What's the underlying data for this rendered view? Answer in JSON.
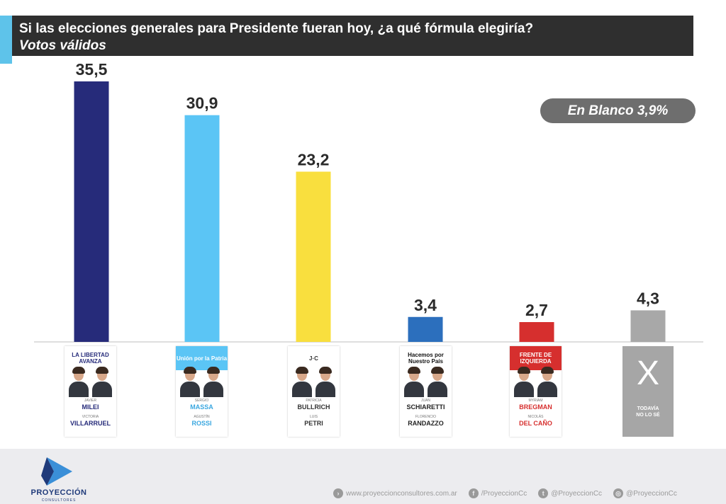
{
  "header": {
    "title": "Si las elecciones generales para Presidente fueran hoy, ¿a qué fórmula elegiría?",
    "subtitle": "Votos válidos"
  },
  "blank_badge": "En Blanco 3,9%",
  "chart_data": {
    "type": "bar",
    "title": "Si las elecciones generales para Presidente fueran hoy, ¿a qué fórmula elegiría?",
    "subtitle": "Votos válidos",
    "categories": [
      "Milei - Villarruel",
      "Massa - Rossi",
      "Bullrich - Petri",
      "Schiaretti - Randazzo",
      "Bregman - Del Caño",
      "Todavía no lo sé"
    ],
    "values": [
      35.5,
      30.9,
      23.2,
      3.4,
      2.7,
      4.3
    ],
    "value_labels": [
      "35,5",
      "30,9",
      "23,2",
      "3,4",
      "2,7",
      "4,3"
    ],
    "colors": [
      "#262b7a",
      "#5bc5f5",
      "#f9df3e",
      "#2c6fbd",
      "#d62f2e",
      "#a8a8a8"
    ],
    "ylim": [
      0,
      35.5
    ],
    "grid": false,
    "legend": "none",
    "annotation": "En Blanco 3,9%"
  },
  "candidates": [
    {
      "party": "LA LIBERTAD AVANZA",
      "first1": "JAVIER",
      "last1": "MILEI",
      "first2": "VICTORIA",
      "last2": "VILLARRUEL",
      "band": "#ffffff",
      "band_text": "#262b7a",
      "name_color": "#262b7a"
    },
    {
      "party": "Unión por la Patria",
      "first1": "SERGIO",
      "last1": "MASSA",
      "first2": "AGUSTÍN",
      "last2": "ROSSI",
      "band": "#5bc5f5",
      "band_text": "#ffffff",
      "name_color": "#3aa7e0"
    },
    {
      "party": "J·C",
      "first1": "PATRICIA",
      "last1": "BULLRICH",
      "first2": "LUIS",
      "last2": "PETRI",
      "band": "#ffffff",
      "band_text": "#333333",
      "name_color": "#333333"
    },
    {
      "party": "Hacemos por Nuestro País",
      "first1": "JUAN",
      "last1": "SCHIARETTI",
      "first2": "FLORENCIO",
      "last2": "RANDAZZO",
      "band": "#ffffff",
      "band_text": "#111111",
      "name_color": "#222222"
    },
    {
      "party": "FRENTE DE IZQUIERDA",
      "first1": "MYRIAM",
      "last1": "BREGMAN",
      "first2": "NICOLÁS",
      "last2": "DEL CAÑO",
      "band": "#d62f2e",
      "band_text": "#ffffff",
      "name_color": "#d62f2e"
    }
  ],
  "none_card": {
    "symbol": "X",
    "text_line1": "TODAVÍA",
    "text_line2": "NO LO SÉ"
  },
  "footer": {
    "brand": "PROYECCIÓN",
    "brand_sub": "CONSULTORES",
    "website": "www.proyeccionconsultores.com.ar",
    "facebook": "/ProyeccionCc",
    "twitter": "@ProyeccionCc",
    "instagram": "@ProyeccionCc"
  }
}
